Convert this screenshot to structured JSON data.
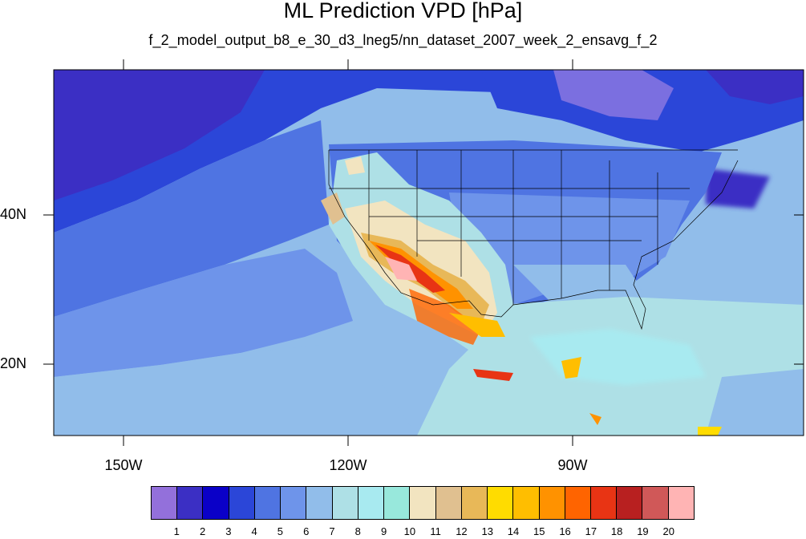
{
  "title": "ML Prediction VPD [hPa]",
  "subtitle": "f_2_model_output_b8_e_30_d3_lneg5/nn_dataset_2007_week_2_ensavg_f_2",
  "axes": {
    "lat_labels": [
      "40N",
      "20N"
    ],
    "lon_labels": [
      "150W",
      "120W",
      "90W"
    ],
    "lat_range": [
      10,
      58
    ],
    "lon_range": [
      -160,
      -62
    ]
  },
  "legend": {
    "levels": [
      "1",
      "2",
      "3",
      "4",
      "5",
      "6",
      "7",
      "8",
      "9",
      "10",
      "11",
      "12",
      "13",
      "14",
      "15",
      "16",
      "17",
      "18",
      "19",
      "20"
    ],
    "colors": [
      "#9370db",
      "#3b2fc4",
      "#0a00c8",
      "#2b46d8",
      "#4f74e2",
      "#6e94ea",
      "#91bdea",
      "#aee0e6",
      "#a8eaf0",
      "#98e8dc",
      "#f2e4c0",
      "#e0c090",
      "#e8b858",
      "#ffdc00",
      "#ffbe00",
      "#ff9200",
      "#ff6400",
      "#e83414",
      "#b82020",
      "#d05858",
      "#ffb4b4"
    ]
  }
}
